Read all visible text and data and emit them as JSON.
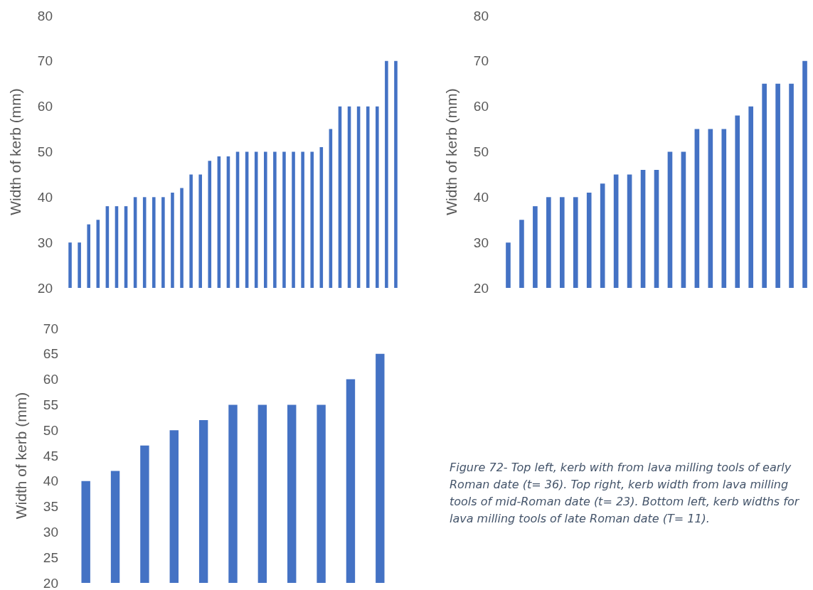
{
  "chart_data": [
    {
      "type": "bar",
      "ylabel": "Width of kerb (mm)",
      "color": "#4472c4",
      "grid": false,
      "ylim": [
        20,
        80
      ],
      "yticks": [
        20,
        30,
        40,
        50,
        60,
        70,
        80
      ],
      "tick_labels": "y",
      "categories": [
        null,
        null,
        null,
        null,
        null,
        null,
        null,
        null,
        null,
        null,
        null,
        null,
        null,
        null,
        null,
        null,
        null,
        null,
        null,
        null,
        null,
        null,
        null,
        null,
        null,
        null,
        null,
        null,
        null,
        null,
        null,
        null,
        null,
        null,
        null,
        null
      ],
      "values": [
        30,
        30,
        34,
        35,
        38,
        38,
        38,
        40,
        40,
        40,
        40,
        41,
        42,
        45,
        45,
        48,
        49,
        49,
        50,
        50,
        50,
        50,
        50,
        50,
        50,
        50,
        50,
        51,
        55,
        60,
        60,
        60,
        60,
        60,
        70,
        70
      ]
    },
    {
      "type": "bar",
      "ylabel": "Width of kerb (mm)",
      "color": "#4472c4",
      "grid": false,
      "ylim": [
        20,
        80
      ],
      "yticks": [
        20,
        30,
        40,
        50,
        60,
        70,
        80
      ],
      "tick_labels": "y",
      "categories": [
        null,
        null,
        null,
        null,
        null,
        null,
        null,
        null,
        null,
        null,
        null,
        null,
        null,
        null,
        null,
        null,
        null,
        null,
        null,
        null,
        null,
        null,
        null
      ],
      "values": [
        30,
        35,
        38,
        40,
        40,
        40,
        41,
        43,
        45,
        45,
        46,
        46,
        50,
        50,
        55,
        55,
        55,
        58,
        60,
        65,
        65,
        65,
        70
      ]
    },
    {
      "type": "bar",
      "ylabel": "Width of kerb (mm)",
      "color": "#4472c4",
      "grid": false,
      "ylim": [
        20,
        70
      ],
      "yticks": [
        20,
        25,
        30,
        35,
        40,
        45,
        50,
        55,
        60,
        65,
        70
      ],
      "tick_labels": "y",
      "categories": [
        null,
        null,
        null,
        null,
        null,
        null,
        null,
        null,
        null,
        null,
        null
      ],
      "values": [
        40,
        42,
        47,
        50,
        52,
        55,
        55,
        55,
        55,
        60,
        65
      ]
    },
    {
      "type": "other",
      "annotations": [
        "Figure 72- Top left, kerb with from lava milling tools of early Roman date (t= 36). Top right, kerb width from lava milling tools of mid-Roman date (t= 23). Bottom left, kerb widths for lava milling tools of late Roman date (T= 11)."
      ]
    }
  ]
}
